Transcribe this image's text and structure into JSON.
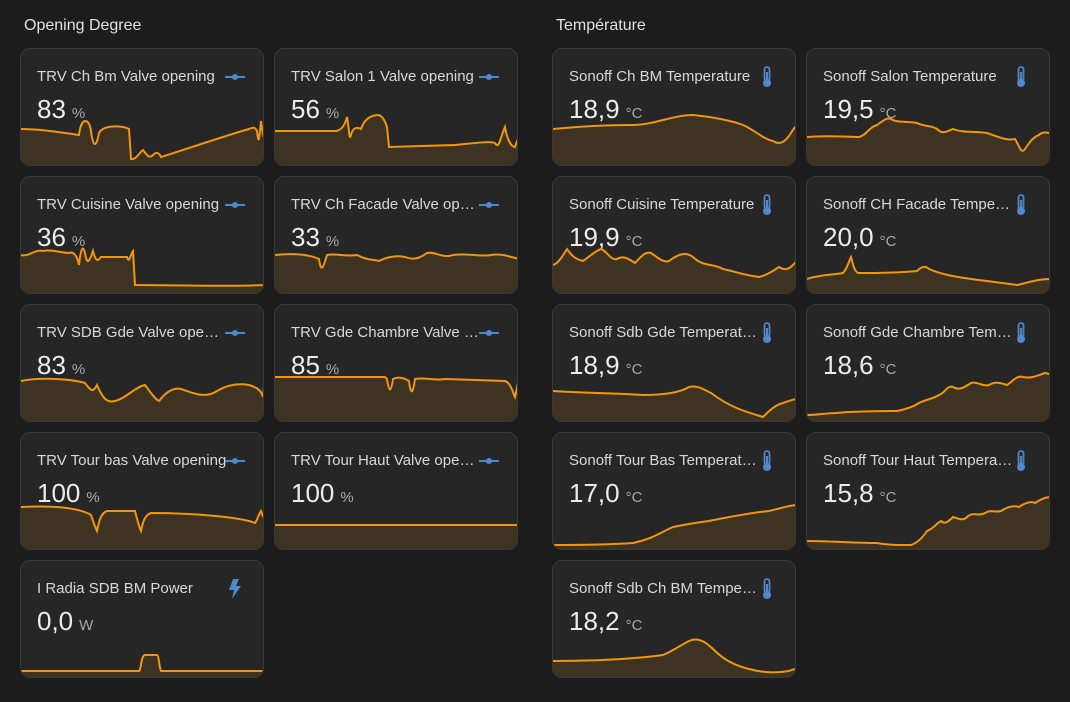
{
  "sections": {
    "opening": {
      "title": "Opening Degree"
    },
    "temperature": {
      "title": "Température"
    }
  },
  "colors": {
    "line": "#f0960f",
    "fill": "#3e3322",
    "icon": "#4c8ac9"
  },
  "cards": [
    {
      "name": "TRV Ch Bm Valve opening",
      "value": "83",
      "unit": "%",
      "icon": "valve-icon"
    },
    {
      "name": "TRV Salon 1 Valve opening",
      "value": "56",
      "unit": "%",
      "icon": "valve-icon"
    },
    {
      "name": "TRV Cuisine Valve opening",
      "value": "36",
      "unit": "%",
      "icon": "valve-icon"
    },
    {
      "name": "TRV Ch Facade Valve opening",
      "value": "33",
      "unit": "%",
      "icon": "valve-icon"
    },
    {
      "name": "TRV SDB Gde Valve opening",
      "value": "83",
      "unit": "%",
      "icon": "valve-icon"
    },
    {
      "name": "TRV Gde Chambre Valve opening",
      "value": "85",
      "unit": "%",
      "icon": "valve-icon"
    },
    {
      "name": "TRV Tour bas Valve opening",
      "value": "100",
      "unit": "%",
      "icon": "valve-icon"
    },
    {
      "name": "TRV Tour Haut Valve opening",
      "value": "100",
      "unit": "%",
      "icon": "valve-icon"
    },
    {
      "name": "I Radia SDB BM Power",
      "value": "0,0",
      "unit": "W",
      "icon": "lightning-icon"
    },
    {
      "name": "Sonoff Ch BM Temperature",
      "value": "18,9",
      "unit": "°C",
      "icon": "thermometer-icon"
    },
    {
      "name": "Sonoff Salon Temperature",
      "value": "19,5",
      "unit": "°C",
      "icon": "thermometer-icon"
    },
    {
      "name": "Sonoff Cuisine Temperature",
      "value": "19,9",
      "unit": "°C",
      "icon": "thermometer-icon"
    },
    {
      "name": "Sonoff CH Facade Temperature",
      "value": "20,0",
      "unit": "°C",
      "icon": "thermometer-icon"
    },
    {
      "name": "Sonoff Sdb Gde Temperature",
      "value": "18,9",
      "unit": "°C",
      "icon": "thermometer-icon"
    },
    {
      "name": "Sonoff Gde Chambre Temperature",
      "value": "18,6",
      "unit": "°C",
      "icon": "thermometer-icon"
    },
    {
      "name": "Sonoff Tour Bas Temperature",
      "value": "17,0",
      "unit": "°C",
      "icon": "thermometer-icon"
    },
    {
      "name": "Sonoff Tour Haut Temperature",
      "value": "15,8",
      "unit": "°C",
      "icon": "thermometer-icon"
    },
    {
      "name": "Sonoff Sdb Ch BM Temperature",
      "value": "18,2",
      "unit": "°C",
      "icon": "thermometer-icon"
    }
  ]
}
